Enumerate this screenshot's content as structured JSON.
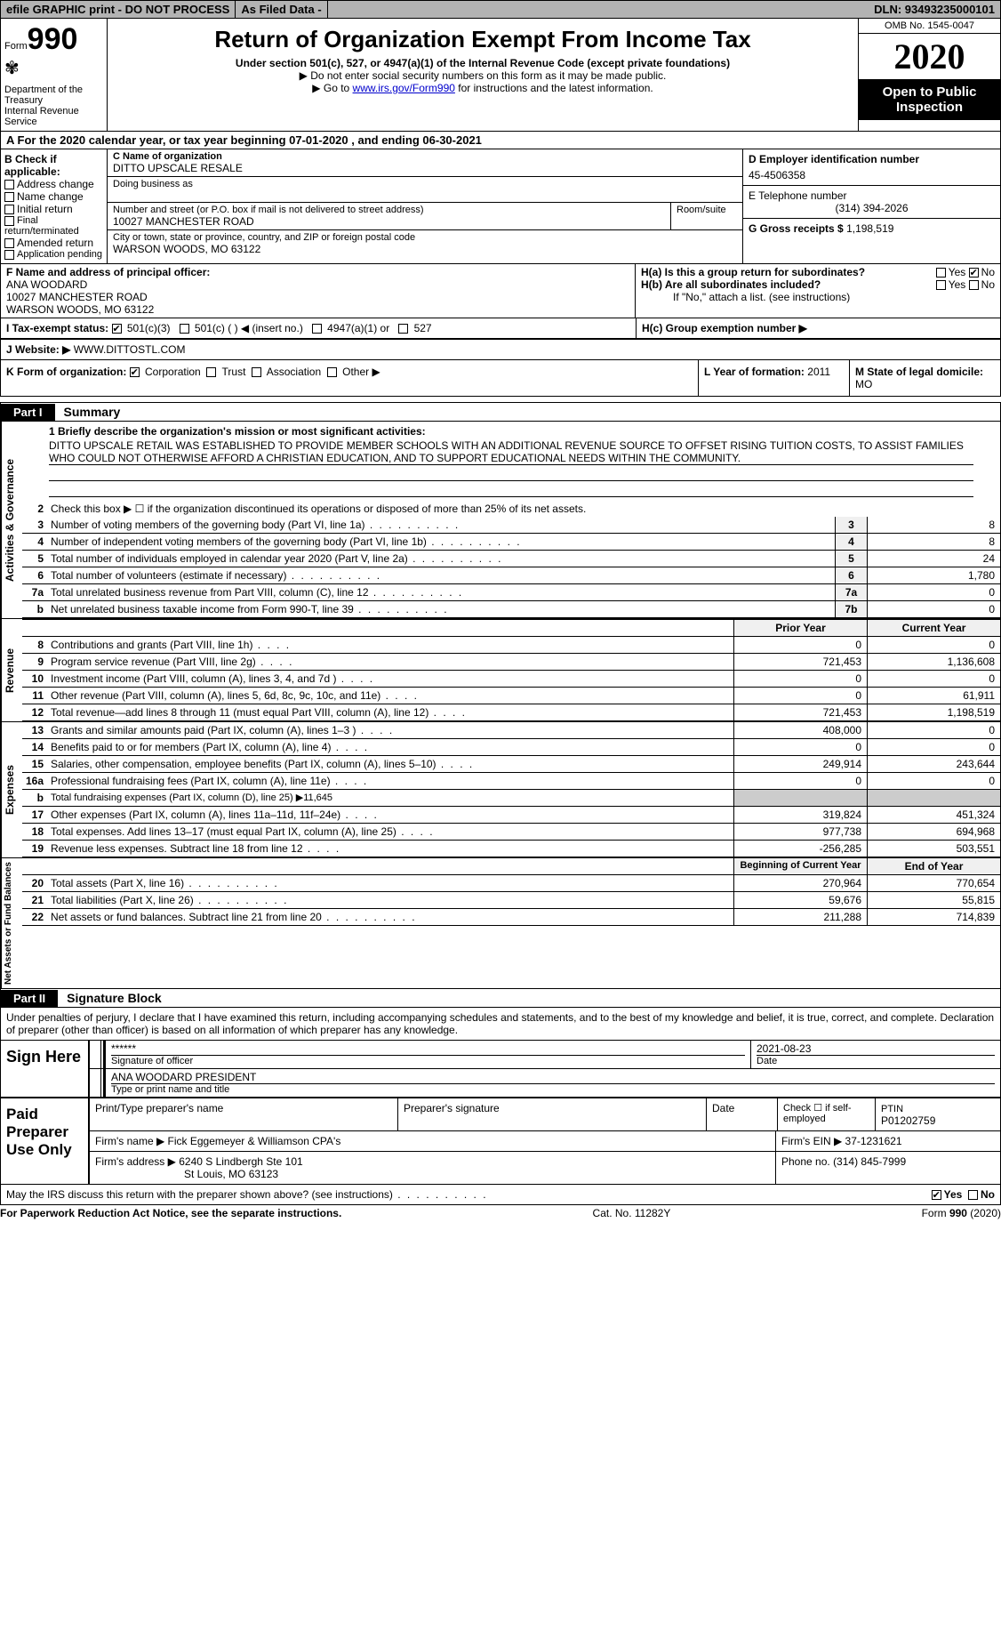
{
  "topbar": {
    "efile": "efile GRAPHIC print - DO NOT PROCESS",
    "asfiled": "As Filed Data -",
    "dln": "DLN: 93493235000101"
  },
  "header": {
    "form_label": "Form",
    "form_no": "990",
    "dept": "Department of the Treasury",
    "irs": "Internal Revenue Service",
    "title": "Return of Organization Exempt From Income Tax",
    "subtitle": "Under section 501(c), 527, or 4947(a)(1) of the Internal Revenue Code (except private foundations)",
    "note1": "▶ Do not enter social security numbers on this form as it may be made public.",
    "note2_pre": "▶ Go to ",
    "note2_link": "www.irs.gov/Form990",
    "note2_post": " for instructions and the latest information.",
    "omb": "OMB No. 1545-0047",
    "year": "2020",
    "open": "Open to Public Inspection"
  },
  "rowA": "A  For the 2020 calendar year, or tax year beginning 07-01-2020  , and ending 06-30-2021",
  "B": {
    "label": "B Check if applicable:",
    "opts": [
      "Address change",
      "Name change",
      "Initial return",
      "Final return/terminated",
      "Amended return",
      "Application pending"
    ]
  },
  "C": {
    "name_label": "C Name of organization",
    "name": "DITTO UPSCALE RESALE",
    "dba_label": "Doing business as",
    "street_label": "Number and street (or P.O. box if mail is not delivered to street address)",
    "room_label": "Room/suite",
    "street": "10027 MANCHESTER ROAD",
    "city_label": "City or town, state or province, country, and ZIP or foreign postal code",
    "city": "WARSON WOODS, MO  63122"
  },
  "D": {
    "label": "D Employer identification number",
    "value": "45-4506358"
  },
  "E": {
    "label": "E Telephone number",
    "value": "(314) 394-2026"
  },
  "G": {
    "label": "G Gross receipts $",
    "value": "1,198,519"
  },
  "F": {
    "label": "F  Name and address of principal officer:",
    "name": "ANA WOODARD",
    "street": "10027 MANCHESTER ROAD",
    "city": "WARSON WOODS, MO  63122"
  },
  "H": {
    "a": "H(a)  Is this a group return for subordinates?",
    "b": "H(b)  Are all subordinates included?",
    "b_note": "If \"No,\" attach a list. (see instructions)",
    "c": "H(c)  Group exemption number ▶",
    "yes": "Yes",
    "no": "No"
  },
  "I": {
    "label": "I  Tax-exempt status:",
    "o1": "501(c)(3)",
    "o2": "501(c) (   ) ◀ (insert no.)",
    "o3": "4947(a)(1) or",
    "o4": "527"
  },
  "J": {
    "label": "J  Website: ▶",
    "value": "WWW.DITTOSTL.COM"
  },
  "K": {
    "label": "K Form of organization:",
    "opts": [
      "Corporation",
      "Trust",
      "Association",
      "Other ▶"
    ]
  },
  "L": {
    "label": "L Year of formation:",
    "value": "2011"
  },
  "M": {
    "label": "M State of legal domicile:",
    "value": "MO"
  },
  "part1": {
    "tab": "Part I",
    "title": "Summary"
  },
  "summary": {
    "side1": "Activities & Governance",
    "side2": "Revenue",
    "side3": "Expenses",
    "side4": "Net Assets or Fund Balances",
    "mission_label": "1  Briefly describe the organization's mission or most significant activities:",
    "mission": "DITTO UPSCALE RETAIL WAS ESTABLISHED TO PROVIDE MEMBER SCHOOLS WITH AN ADDITIONAL REVENUE SOURCE TO OFFSET RISING TUITION COSTS, TO ASSIST FAMILIES WHO COULD NOT OTHERWISE AFFORD A CHRISTIAN EDUCATION, AND TO SUPPORT EDUCATIONAL NEEDS WITHIN THE COMMUNITY.",
    "line2": "Check this box ▶ ☐ if the organization discontinued its operations or disposed of more than 25% of its net assets.",
    "lines_ag": [
      {
        "n": "3",
        "t": "Number of voting members of the governing body (Part VI, line 1a)",
        "box": "3",
        "v": "8"
      },
      {
        "n": "4",
        "t": "Number of independent voting members of the governing body (Part VI, line 1b)",
        "box": "4",
        "v": "8"
      },
      {
        "n": "5",
        "t": "Total number of individuals employed in calendar year 2020 (Part V, line 2a)",
        "box": "5",
        "v": "24"
      },
      {
        "n": "6",
        "t": "Total number of volunteers (estimate if necessary)",
        "box": "6",
        "v": "1,780"
      },
      {
        "n": "7a",
        "t": "Total unrelated business revenue from Part VIII, column (C), line 12",
        "box": "7a",
        "v": "0"
      },
      {
        "n": "b",
        "t": "Net unrelated business taxable income from Form 990-T, line 39",
        "box": "7b",
        "v": "0"
      }
    ],
    "col_prior": "Prior Year",
    "col_current": "Current Year",
    "rev": [
      {
        "n": "8",
        "t": "Contributions and grants (Part VIII, line 1h)",
        "p": "0",
        "c": "0"
      },
      {
        "n": "9",
        "t": "Program service revenue (Part VIII, line 2g)",
        "p": "721,453",
        "c": "1,136,608"
      },
      {
        "n": "10",
        "t": "Investment income (Part VIII, column (A), lines 3, 4, and 7d )",
        "p": "0",
        "c": "0"
      },
      {
        "n": "11",
        "t": "Other revenue (Part VIII, column (A), lines 5, 6d, 8c, 9c, 10c, and 11e)",
        "p": "0",
        "c": "61,911"
      },
      {
        "n": "12",
        "t": "Total revenue—add lines 8 through 11 (must equal Part VIII, column (A), line 12)",
        "p": "721,453",
        "c": "1,198,519"
      }
    ],
    "exp": [
      {
        "n": "13",
        "t": "Grants and similar amounts paid (Part IX, column (A), lines 1–3 )",
        "p": "408,000",
        "c": "0"
      },
      {
        "n": "14",
        "t": "Benefits paid to or for members (Part IX, column (A), line 4)",
        "p": "0",
        "c": "0"
      },
      {
        "n": "15",
        "t": "Salaries, other compensation, employee benefits (Part IX, column (A), lines 5–10)",
        "p": "249,914",
        "c": "243,644"
      },
      {
        "n": "16a",
        "t": "Professional fundraising fees (Part IX, column (A), line 11e)",
        "p": "0",
        "c": "0"
      },
      {
        "n": "b",
        "t": "Total fundraising expenses (Part IX, column (D), line 25) ▶11,645",
        "p": "",
        "c": ""
      },
      {
        "n": "17",
        "t": "Other expenses (Part IX, column (A), lines 11a–11d, 11f–24e)",
        "p": "319,824",
        "c": "451,324"
      },
      {
        "n": "18",
        "t": "Total expenses. Add lines 13–17 (must equal Part IX, column (A), line 25)",
        "p": "977,738",
        "c": "694,968"
      },
      {
        "n": "19",
        "t": "Revenue less expenses. Subtract line 18 from line 12",
        "p": "-256,285",
        "c": "503,551"
      }
    ],
    "col_beg": "Beginning of Current Year",
    "col_end": "End of Year",
    "net": [
      {
        "n": "20",
        "t": "Total assets (Part X, line 16)",
        "p": "270,964",
        "c": "770,654"
      },
      {
        "n": "21",
        "t": "Total liabilities (Part X, line 26)",
        "p": "59,676",
        "c": "55,815"
      },
      {
        "n": "22",
        "t": "Net assets or fund balances. Subtract line 21 from line 20",
        "p": "211,288",
        "c": "714,839"
      }
    ]
  },
  "part2": {
    "tab": "Part II",
    "title": "Signature Block"
  },
  "sig": {
    "declare": "Under penalties of perjury, I declare that I have examined this return, including accompanying schedules and statements, and to the best of my knowledge and belief, it is true, correct, and complete. Declaration of preparer (other than officer) is based on all information of which preparer has any knowledge.",
    "sign_here": "Sign Here",
    "stars": "******",
    "sig_of_officer": "Signature of officer",
    "date": "2021-08-23",
    "date_lbl": "Date",
    "officer": "ANA WOODARD PRESIDENT",
    "type_label": "Type or print name and title"
  },
  "paid": {
    "label": "Paid Preparer Use Only",
    "h1": "Print/Type preparer's name",
    "h2": "Preparer's signature",
    "h3": "Date",
    "h4_pre": "Check ☐ if self-employed",
    "ptin_lbl": "PTIN",
    "ptin": "P01202759",
    "firm_name_lbl": "Firm's name    ▶",
    "firm_name": "Fick Eggemeyer & Williamson CPA's",
    "ein_lbl": "Firm's EIN ▶",
    "ein": "37-1231621",
    "addr_lbl": "Firm's address ▶",
    "addr1": "6240 S Lindbergh Ste 101",
    "addr2": "St Louis, MO  63123",
    "phone_lbl": "Phone no.",
    "phone": "(314) 845-7999"
  },
  "footer": {
    "q": "May the IRS discuss this return with the preparer shown above? (see instructions)",
    "yes": "Yes",
    "no": "No"
  },
  "bottom": {
    "l": "For Paperwork Reduction Act Notice, see the separate instructions.",
    "m": "Cat. No. 11282Y",
    "r": "Form 990 (2020)"
  }
}
